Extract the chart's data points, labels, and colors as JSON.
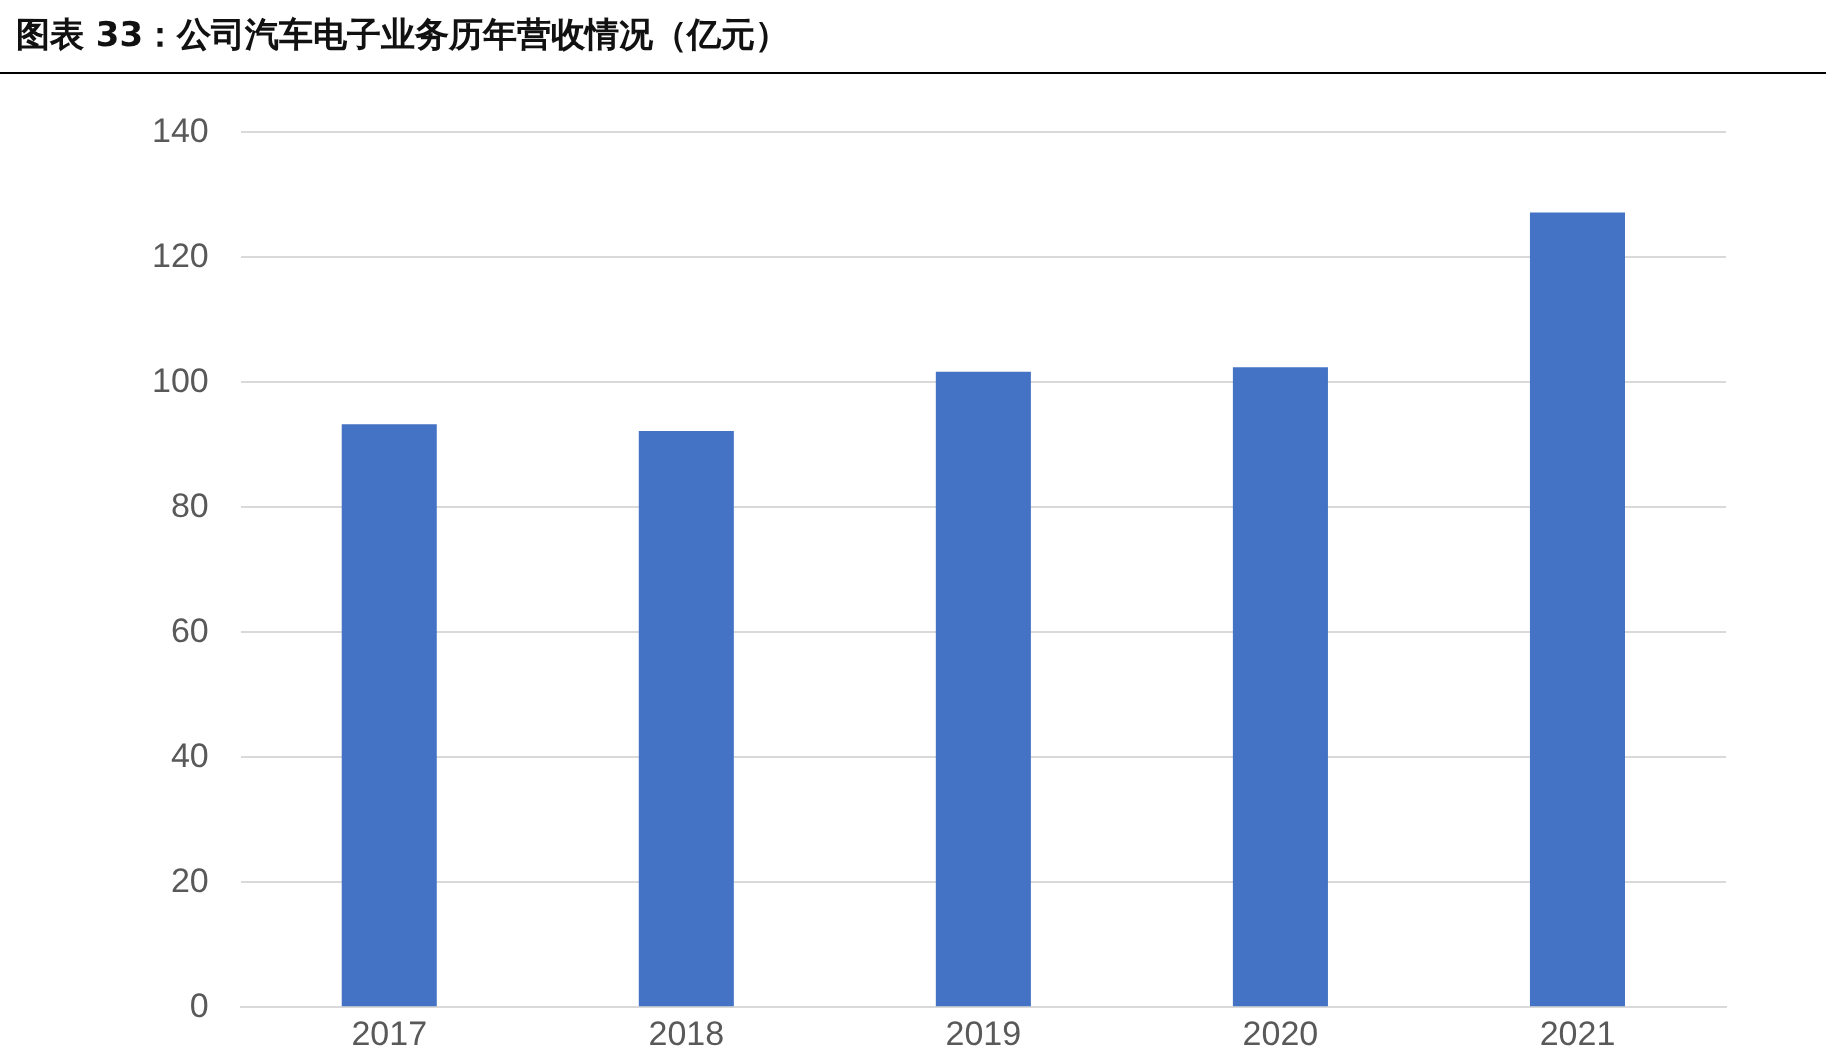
{
  "chart_data": {
    "type": "bar",
    "title": "图表 33：公司汽车电子业务历年营收情况（亿元）",
    "categories": [
      "2017",
      "2018",
      "2019",
      "2020",
      "2021"
    ],
    "values": [
      93.3,
      92.2,
      101.7,
      102.4,
      127.2
    ],
    "color": "#4472c4",
    "ylim": [
      0,
      140
    ],
    "yticks": [
      0,
      20,
      40,
      60,
      80,
      100,
      120,
      140
    ],
    "grid": "y",
    "legend": false
  }
}
